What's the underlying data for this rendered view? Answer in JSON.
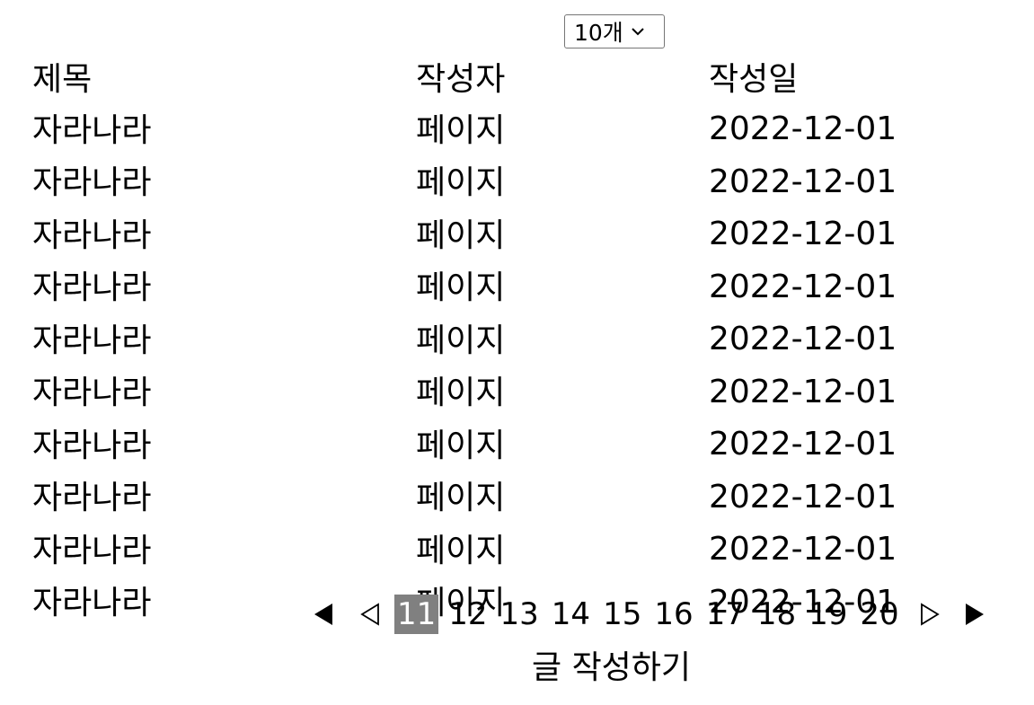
{
  "page_size": {
    "selected": "10개"
  },
  "table": {
    "headers": {
      "title": "제목",
      "author": "작성자",
      "date": "작성일"
    },
    "rows": [
      {
        "title": "자라나라",
        "author": "페이지",
        "date": "2022-12-01"
      },
      {
        "title": "자라나라",
        "author": "페이지",
        "date": "2022-12-01"
      },
      {
        "title": "자라나라",
        "author": "페이지",
        "date": "2022-12-01"
      },
      {
        "title": "자라나라",
        "author": "페이지",
        "date": "2022-12-01"
      },
      {
        "title": "자라나라",
        "author": "페이지",
        "date": "2022-12-01"
      },
      {
        "title": "자라나라",
        "author": "페이지",
        "date": "2022-12-01"
      },
      {
        "title": "자라나라",
        "author": "페이지",
        "date": "2022-12-01"
      },
      {
        "title": "자라나라",
        "author": "페이지",
        "date": "2022-12-01"
      },
      {
        "title": "자라나라",
        "author": "페이지",
        "date": "2022-12-01"
      },
      {
        "title": "자라나라",
        "author": "페이지",
        "date": "2022-12-01"
      }
    ]
  },
  "pagination": {
    "pages": [
      "11",
      "12",
      "13",
      "14",
      "15",
      "16",
      "17",
      "18",
      "19",
      "20"
    ],
    "current": "11",
    "icons": {
      "first": "filled-left-triangle-icon",
      "prev": "outline-left-triangle-icon",
      "next": "outline-right-triangle-icon",
      "last": "filled-right-triangle-icon"
    },
    "current_bg": "#808080"
  },
  "write_button": {
    "label": "글 작성하기"
  }
}
